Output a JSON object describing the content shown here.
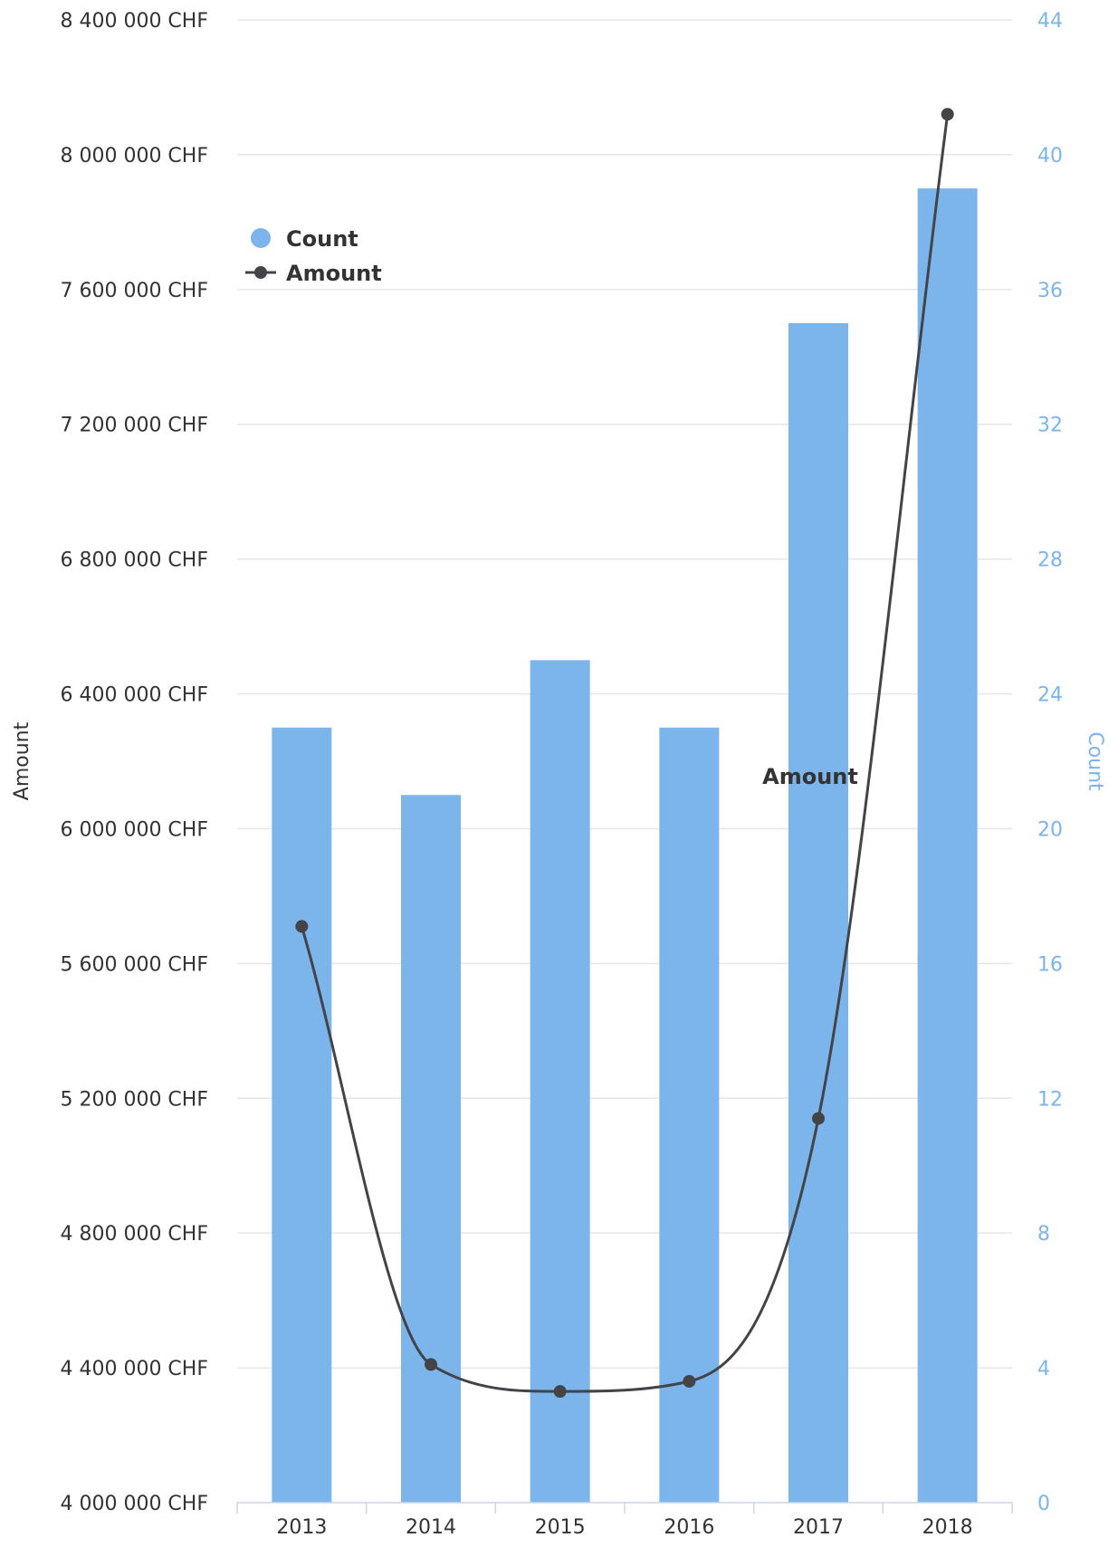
{
  "chart_data": {
    "type": "bar",
    "categories": [
      "2013",
      "2014",
      "2015",
      "2016",
      "2017",
      "2018"
    ],
    "series": [
      {
        "name": "Count",
        "type": "bar",
        "axis": "right",
        "values": [
          23,
          21,
          25,
          23,
          35,
          39
        ]
      },
      {
        "name": "Amount",
        "type": "line",
        "axis": "left",
        "values": [
          5710000,
          4410000,
          4330000,
          4360000,
          5140000,
          8120000
        ]
      }
    ],
    "left_axis": {
      "title": "Amount",
      "range": [
        4000000,
        8400000
      ],
      "ticks": [
        "4 000 000 CHF",
        "4 400 000 CHF",
        "4 800 000 CHF",
        "5 200 000 CHF",
        "5 600 000 CHF",
        "6 000 000 CHF",
        "6 400 000 CHF",
        "6 800 000 CHF",
        "7 200 000 CHF",
        "7 600 000 CHF",
        "8 000 000 CHF",
        "8 400 000 CHF"
      ]
    },
    "right_axis": {
      "title": "Count",
      "range": [
        0,
        44
      ],
      "ticks": [
        "0",
        "4",
        "8",
        "12",
        "16",
        "20",
        "24",
        "28",
        "32",
        "36",
        "40",
        "44"
      ]
    },
    "legend": {
      "position": "top-left",
      "items": [
        {
          "name": "Count",
          "symbol": "circle",
          "color": "#7cb5ec"
        },
        {
          "name": "Amount",
          "symbol": "line-marker",
          "color": "#434348"
        }
      ]
    },
    "series_label": "Amount",
    "grid": true,
    "colors": {
      "bar": "#7cb5ec",
      "line": "#434348",
      "grid": "#e6e6e6",
      "axis_line": "#ccd6eb",
      "left_text": "#333333",
      "right_text": "#7cb5ec"
    }
  }
}
